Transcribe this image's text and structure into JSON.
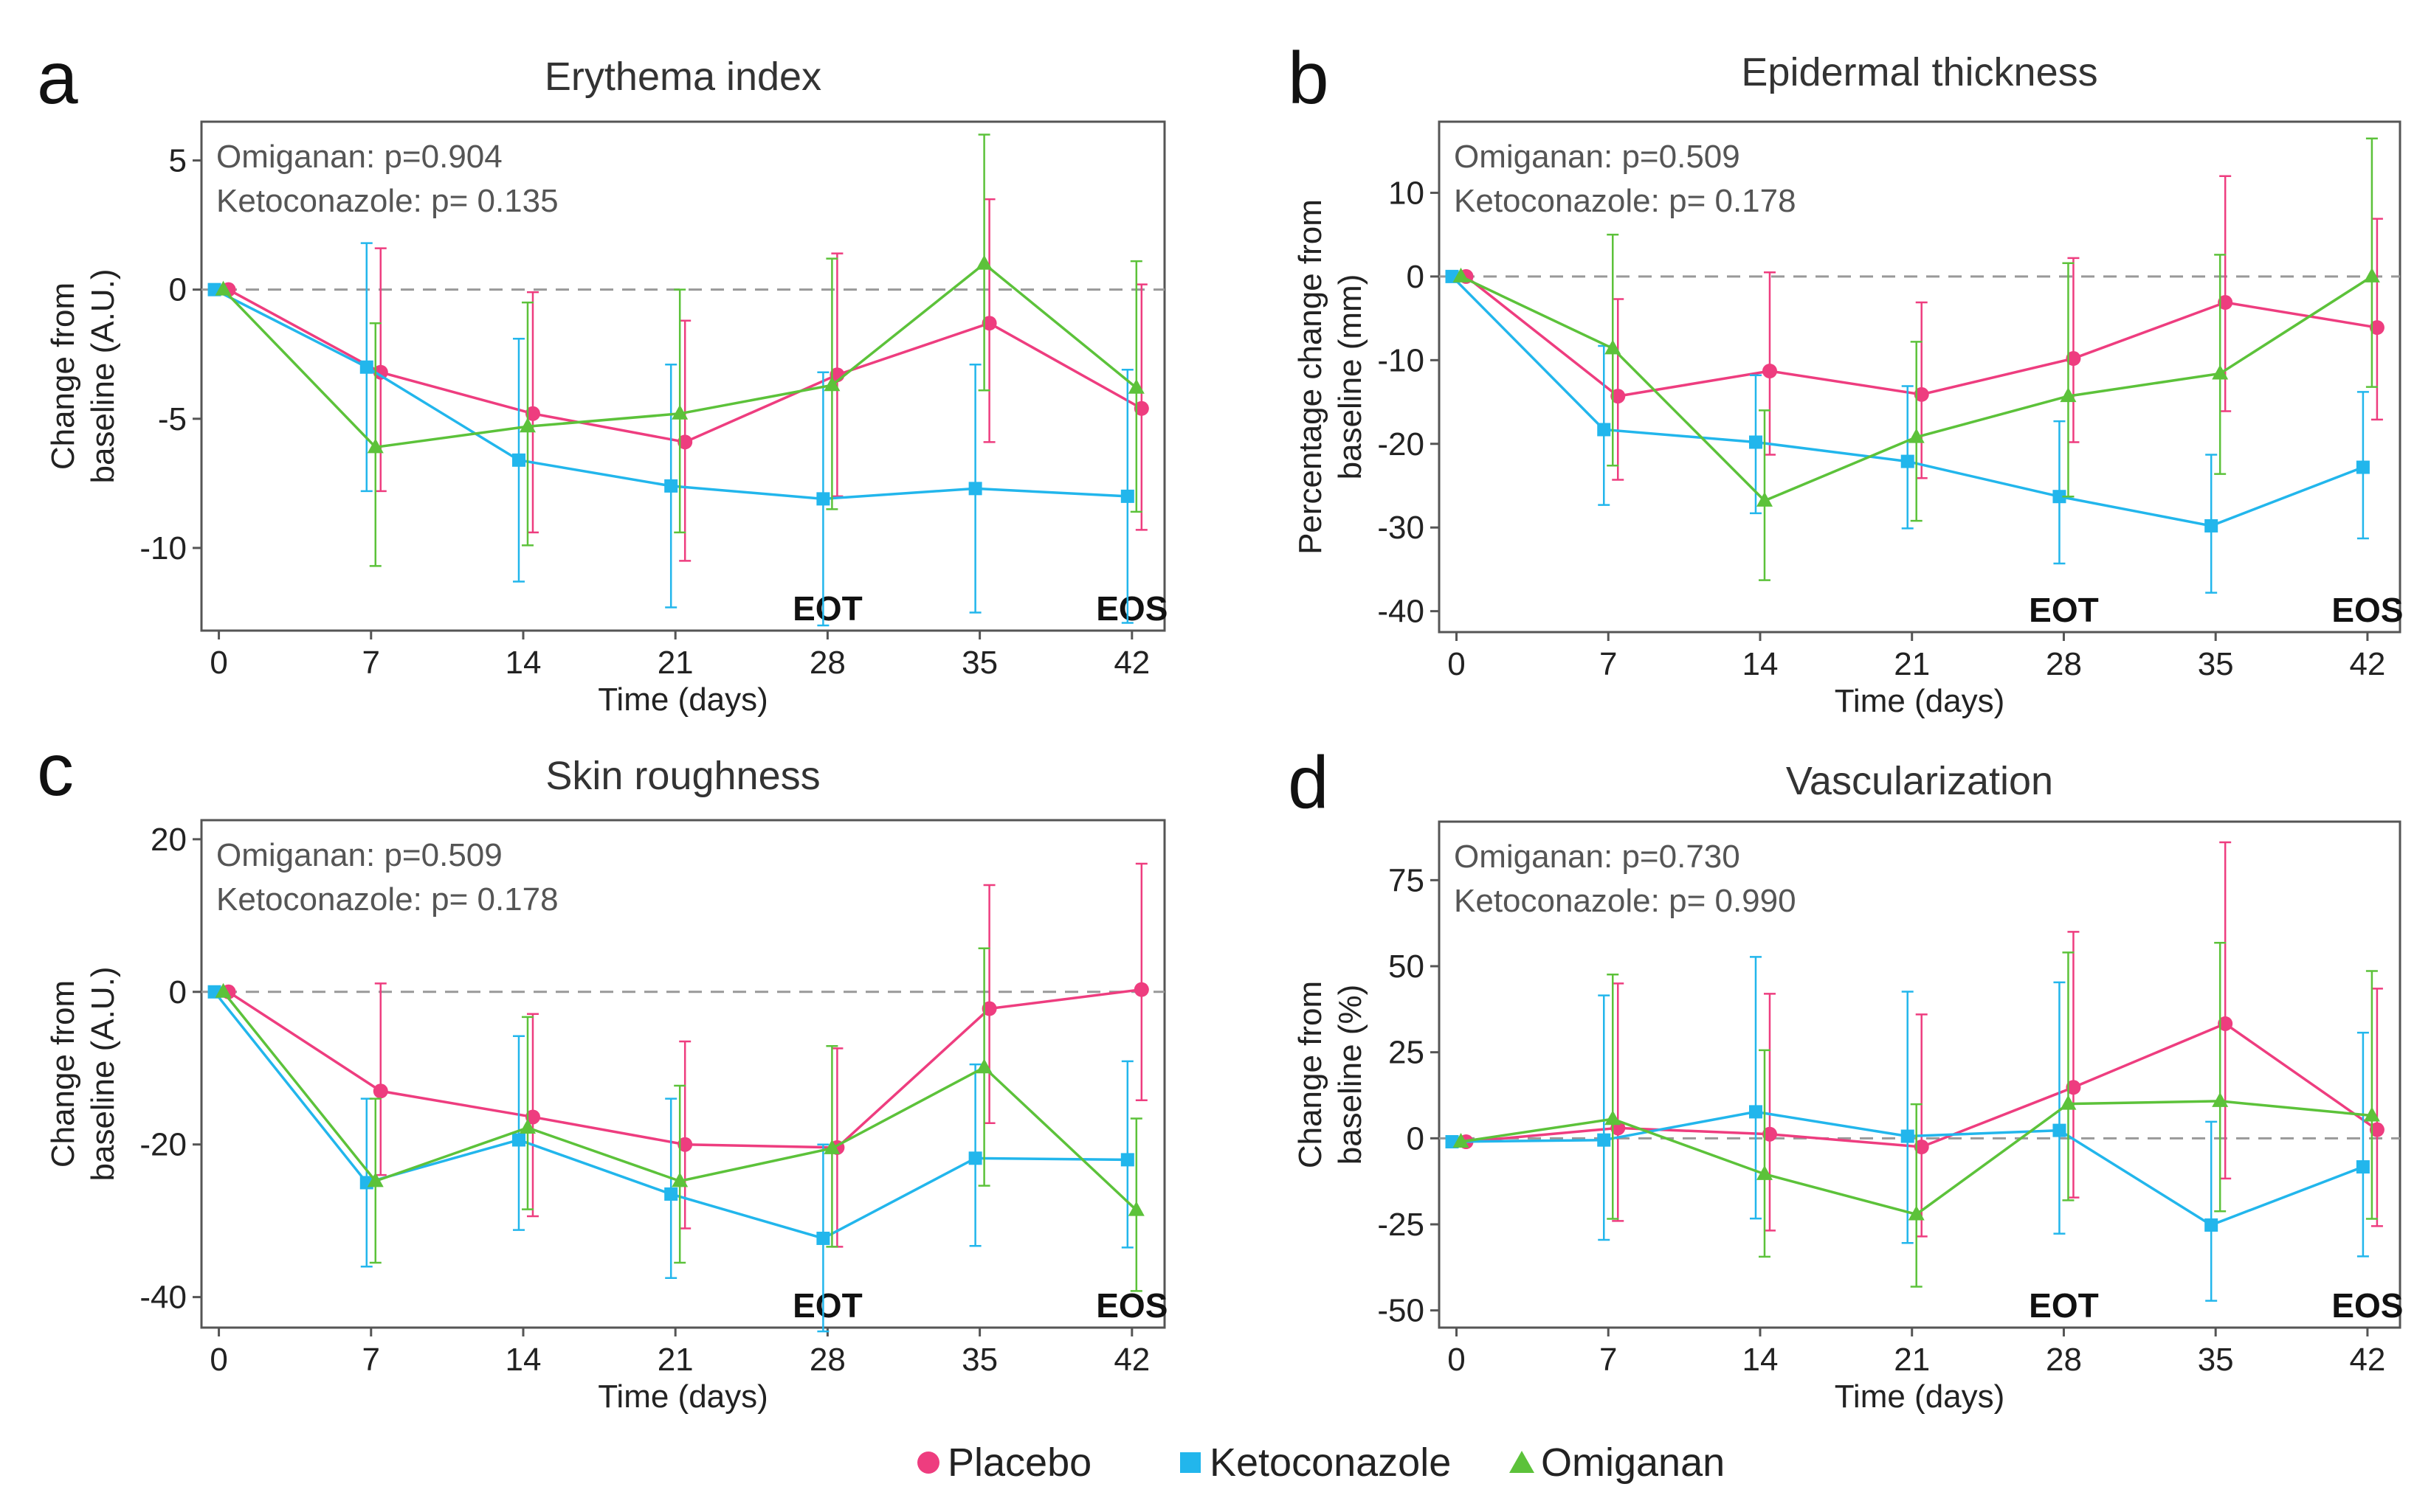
{
  "colors": {
    "Placebo": "#ee3d7f",
    "Ketoconazole": "#22b6ec",
    "Omiganan": "#5cc23a"
  },
  "legend": [
    {
      "name": "Placebo",
      "marker": "circle"
    },
    {
      "name": "Ketoconazole",
      "marker": "square"
    },
    {
      "name": "Omiganan",
      "marker": "triangle"
    }
  ],
  "chart_data": [
    {
      "letter": "a",
      "type": "line",
      "title": "Erythema index",
      "xlabel": "Time (days)",
      "ylabel_lines": [
        "Change from",
        "baseline (A.U.)"
      ],
      "annotations": [
        "Omiganan: p=0.904",
        "Ketoconazole: p= 0.135"
      ],
      "markers": [
        "EOT",
        "EOS"
      ],
      "x": [
        0,
        7,
        14,
        21,
        28,
        35,
        42
      ],
      "xlim": [
        -0.8,
        43.5
      ],
      "ylim": [
        -13.2,
        6.5
      ],
      "yticks": [
        5,
        0,
        -5,
        -10
      ],
      "series": [
        {
          "name": "Placebo",
          "values": [
            0,
            -3.2,
            -4.8,
            -5.9,
            -3.3,
            -1.3,
            -4.6
          ],
          "err_lo": [
            0,
            -7.8,
            -9.4,
            -10.5,
            -8,
            -5.9,
            -9.3
          ],
          "err_hi": [
            0,
            1.6,
            -0.1,
            -1.2,
            1.4,
            3.5,
            0.2
          ]
        },
        {
          "name": "Ketoconazole",
          "values": [
            0,
            -3,
            -6.6,
            -7.6,
            -8.1,
            -7.7,
            -8
          ],
          "err_lo": [
            0,
            -7.8,
            -11.3,
            -12.3,
            -13,
            -12.5,
            -12.9
          ],
          "err_hi": [
            0,
            1.8,
            -1.9,
            -2.9,
            -3.2,
            -2.9,
            -3.1
          ]
        },
        {
          "name": "Omiganan",
          "values": [
            0,
            -6.1,
            -5.3,
            -4.8,
            -3.7,
            1,
            -3.8
          ],
          "err_lo": [
            0,
            -10.7,
            -9.9,
            -9.4,
            -8.5,
            -3.9,
            -8.6
          ],
          "err_hi": [
            0,
            -1.3,
            -0.5,
            0,
            1.2,
            6,
            1.1
          ]
        }
      ]
    },
    {
      "letter": "b",
      "type": "line",
      "title": "Epidermal thickness",
      "xlabel": "Time (days)",
      "ylabel_lines": [
        "Percentage change from",
        "baseline (mm)"
      ],
      "annotations": [
        "Omiganan: p=0.509",
        "Ketoconazole: p= 0.178"
      ],
      "markers": [
        "EOT",
        "EOS"
      ],
      "x": [
        0,
        7,
        14,
        21,
        28,
        35,
        42
      ],
      "xlim": [
        -0.8,
        43.5
      ],
      "ylim": [
        -42.5,
        18.5
      ],
      "yticks": [
        10,
        0,
        -10,
        -20,
        -30,
        -40
      ],
      "series": [
        {
          "name": "Placebo",
          "values": [
            0,
            -14.3,
            -11.3,
            -14.1,
            -9.8,
            -3.1,
            -6.1
          ],
          "err_lo": [
            0,
            -24.3,
            -21.3,
            -24.1,
            -19.8,
            -16.1,
            -17.1
          ],
          "err_hi": [
            0,
            -2.7,
            0.5,
            -3.1,
            2.2,
            12,
            6.9
          ]
        },
        {
          "name": "Ketoconazole",
          "values": [
            0,
            -18.3,
            -19.8,
            -22.1,
            -26.3,
            -29.8,
            -22.8
          ],
          "err_lo": [
            0,
            -27.3,
            -28.3,
            -30.1,
            -34.3,
            -37.8,
            -31.3
          ],
          "err_hi": [
            0,
            -8.3,
            -11.8,
            -13.1,
            -17.3,
            -21.3,
            -13.8
          ]
        },
        {
          "name": "Omiganan",
          "values": [
            0,
            -8.6,
            -26.8,
            -19.2,
            -14.3,
            -11.6,
            0
          ],
          "err_lo": [
            0,
            -22.6,
            -36.3,
            -29.2,
            -26.3,
            -23.6,
            -13.2
          ],
          "err_hi": [
            0,
            5,
            -16,
            -7.8,
            1.6,
            2.6,
            16.5
          ]
        }
      ]
    },
    {
      "letter": "c",
      "type": "line",
      "title": "Skin roughness",
      "xlabel": "Time (days)",
      "ylabel_lines": [
        "Change from",
        "baseline (A.U.)"
      ],
      "annotations": [
        "Omiganan: p=0.509",
        "Ketoconazole: p= 0.178"
      ],
      "markers": [
        "EOT",
        "EOS"
      ],
      "x": [
        0,
        7,
        14,
        21,
        28,
        35,
        42
      ],
      "xlim": [
        -0.8,
        43.5
      ],
      "ylim": [
        -44,
        22.5
      ],
      "yticks": [
        20,
        0,
        -20,
        -40
      ],
      "series": [
        {
          "name": "Placebo",
          "values": [
            0,
            -13,
            -16.4,
            -20,
            -20.4,
            -2.2,
            0.3
          ],
          "err_lo": [
            0,
            -24,
            -29.4,
            -31,
            -33.4,
            -17.2,
            -14.2
          ],
          "err_hi": [
            0,
            1.1,
            -2.9,
            -6.5,
            -7.4,
            14,
            16.8
          ]
        },
        {
          "name": "Ketoconazole",
          "values": [
            0,
            -25,
            -19.4,
            -26.5,
            -32.3,
            -21.8,
            -22
          ],
          "err_lo": [
            0,
            -36,
            -31.2,
            -37.5,
            -44.5,
            -33.3,
            -33.5
          ],
          "err_hi": [
            0,
            -14,
            -5.8,
            -14,
            -20,
            -9.5,
            -9.1
          ]
        },
        {
          "name": "Omiganan",
          "values": [
            0,
            -24.8,
            -17.8,
            -24.8,
            -20.5,
            -9.9,
            -28.6
          ],
          "err_lo": [
            0,
            -35.5,
            -28.5,
            -35.5,
            -33.4,
            -25.4,
            -39.2
          ],
          "err_hi": [
            0,
            -14,
            -3.3,
            -12.3,
            -7.1,
            5.7,
            -16.6
          ]
        }
      ]
    },
    {
      "letter": "d",
      "type": "line",
      "title": "Vascularization",
      "xlabel": "Time (days)",
      "ylabel_lines": [
        "Change from",
        "baseline (%)"
      ],
      "annotations": [
        "Omiganan: p=0.730",
        "Ketoconazole: p= 0.990"
      ],
      "markers": [
        "EOT",
        "EOS"
      ],
      "x": [
        0,
        7,
        14,
        21,
        28,
        35,
        42
      ],
      "xlim": [
        -0.8,
        43.5
      ],
      "ylim": [
        -55,
        92
      ],
      "yticks": [
        75,
        50,
        25,
        0,
        -25,
        -50
      ],
      "series": [
        {
          "name": "Placebo",
          "values": [
            -1,
            3,
            1.2,
            -2.5,
            14.8,
            33.3,
            2.5
          ],
          "err_lo": [
            -1,
            -24,
            -26.8,
            -28.5,
            -17.2,
            -11.7,
            -25.5
          ],
          "err_hi": [
            -1,
            45,
            42,
            36,
            60,
            86,
            43.5
          ]
        },
        {
          "name": "Ketoconazole",
          "values": [
            -1,
            -0.5,
            7.7,
            0.6,
            2.3,
            -25.2,
            -8.3
          ],
          "err_lo": [
            -1,
            -29.5,
            -23.3,
            -30.4,
            -27.7,
            -47.2,
            -34.3
          ],
          "err_hi": [
            -1,
            41.5,
            52.7,
            42.6,
            45.3,
            4.8,
            30.7
          ]
        },
        {
          "name": "Omiganan",
          "values": [
            -1,
            5.6,
            -10.4,
            -22.1,
            10,
            10.8,
            6.6
          ],
          "err_lo": [
            -1,
            -23.4,
            -34.4,
            -43.1,
            -18,
            -21.2,
            -23.4
          ],
          "err_hi": [
            -1,
            47.6,
            25.6,
            9.9,
            54,
            56.8,
            48.6
          ]
        }
      ]
    }
  ]
}
